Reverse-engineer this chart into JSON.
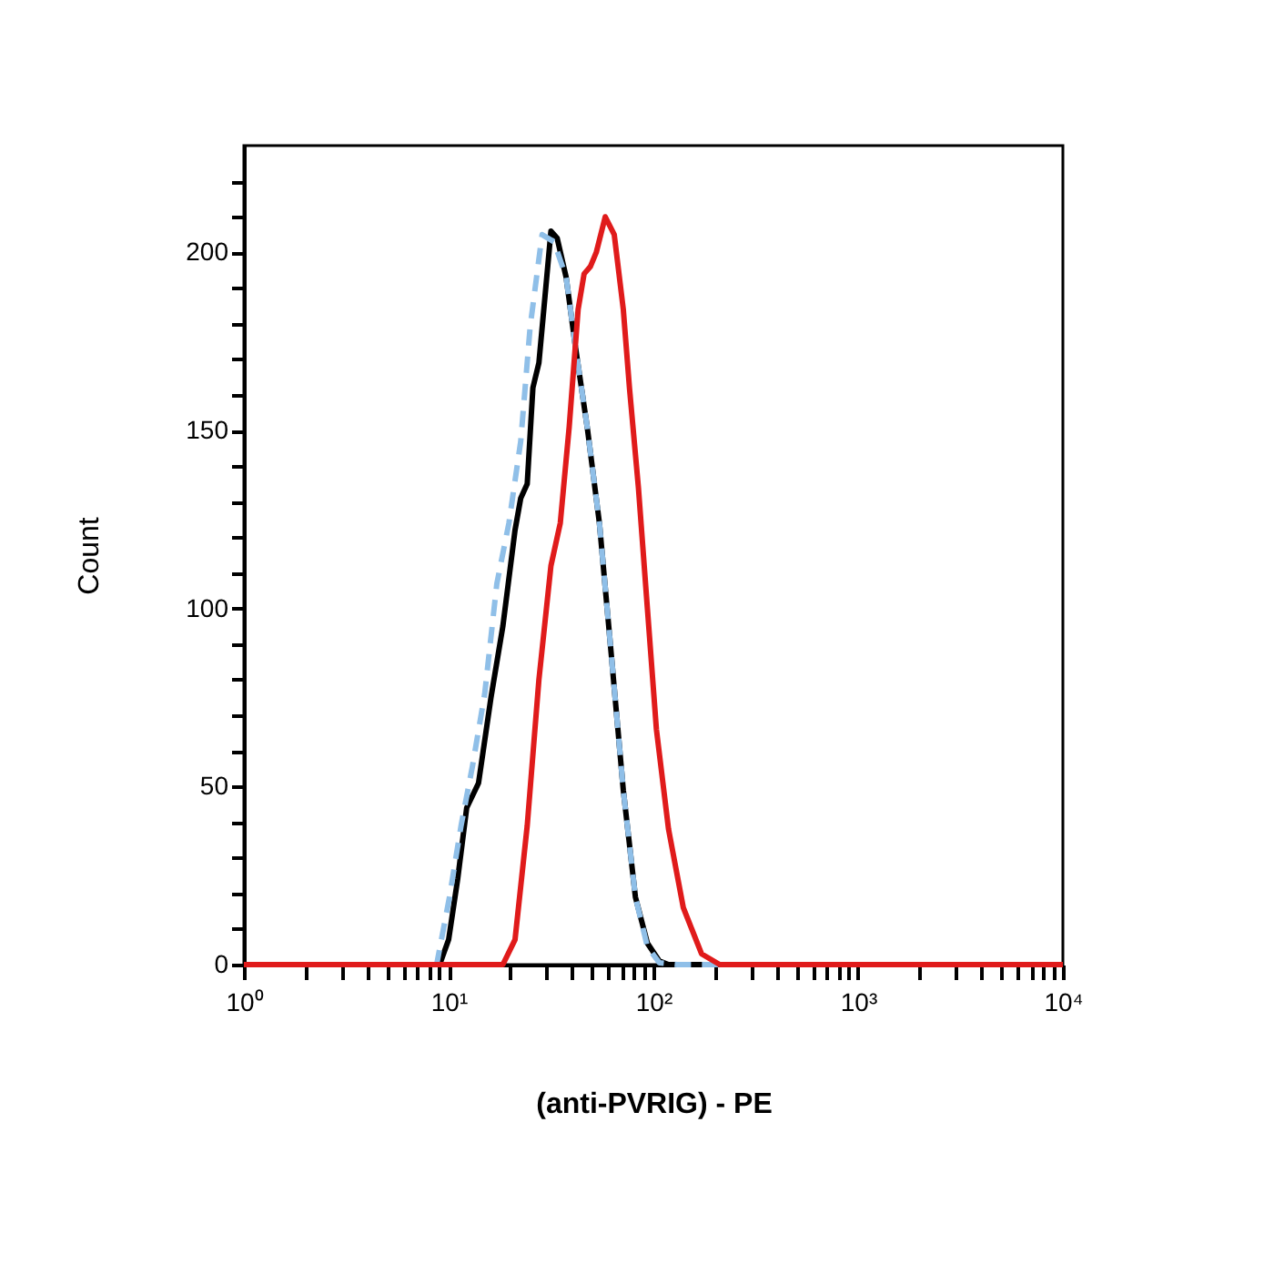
{
  "chart_data": {
    "type": "line",
    "xlabel": "(anti-PVRIG) - PE",
    "ylabel": "Count",
    "log": "x",
    "xlim": [
      1,
      10000
    ],
    "ylim": [
      0,
      230
    ],
    "xticks": [
      {
        "value": 1,
        "label": "10⁰"
      },
      {
        "value": 2,
        "label": null
      },
      {
        "value": 3,
        "label": null
      },
      {
        "value": 4,
        "label": null
      },
      {
        "value": 5,
        "label": null
      },
      {
        "value": 6,
        "label": null
      },
      {
        "value": 7,
        "label": null
      },
      {
        "value": 8,
        "label": null
      },
      {
        "value": 9,
        "label": null
      },
      {
        "value": 10,
        "label": "10¹"
      },
      {
        "value": 20,
        "label": null
      },
      {
        "value": 30,
        "label": null
      },
      {
        "value": 40,
        "label": null
      },
      {
        "value": 50,
        "label": null
      },
      {
        "value": 60,
        "label": null
      },
      {
        "value": 70,
        "label": null
      },
      {
        "value": 80,
        "label": null
      },
      {
        "value": 90,
        "label": null
      },
      {
        "value": 100,
        "label": "10²"
      },
      {
        "value": 200,
        "label": null
      },
      {
        "value": 300,
        "label": null
      },
      {
        "value": 400,
        "label": null
      },
      {
        "value": 500,
        "label": null
      },
      {
        "value": 600,
        "label": null
      },
      {
        "value": 700,
        "label": null
      },
      {
        "value": 800,
        "label": null
      },
      {
        "value": 900,
        "label": null
      },
      {
        "value": 1000,
        "label": "10³"
      },
      {
        "value": 2000,
        "label": null
      },
      {
        "value": 3000,
        "label": null
      },
      {
        "value": 4000,
        "label": null
      },
      {
        "value": 5000,
        "label": null
      },
      {
        "value": 6000,
        "label": null
      },
      {
        "value": 7000,
        "label": null
      },
      {
        "value": 8000,
        "label": null
      },
      {
        "value": 9000,
        "label": null
      },
      {
        "value": 10000,
        "label": "10⁴"
      }
    ],
    "yticks": [
      0,
      {
        "value": 10,
        "label": null
      },
      {
        "value": 20,
        "label": null
      },
      {
        "value": 30,
        "label": null
      },
      {
        "value": 40,
        "label": null
      },
      50,
      {
        "value": 60,
        "label": null
      },
      {
        "value": 70,
        "label": null
      },
      {
        "value": 80,
        "label": null
      },
      {
        "value": 90,
        "label": null
      },
      100,
      {
        "value": 110,
        "label": null
      },
      {
        "value": 120,
        "label": null
      },
      {
        "value": 130,
        "label": null
      },
      {
        "value": 140,
        "label": null
      },
      150,
      {
        "value": 160,
        "label": null
      },
      {
        "value": 170,
        "label": null
      },
      {
        "value": 180,
        "label": null
      },
      {
        "value": 190,
        "label": null
      },
      200,
      {
        "value": 210,
        "label": null
      },
      {
        "value": 220,
        "label": null
      }
    ],
    "grid": false,
    "marker": "none",
    "series": [
      {
        "color": "#000000",
        "line_style": "solid",
        "x": [
          1,
          9.04,
          10,
          11.07,
          12.25,
          14,
          16.1,
          18.4,
          21.1,
          22.5,
          24.2,
          25.8,
          27.6,
          29.6,
          31.6,
          33.9,
          37.5,
          41.5,
          47.5,
          54.5,
          62.3,
          71.3,
          81.7,
          93.5,
          107,
          118.6,
          10000
        ],
        "values": [
          0,
          0,
          7,
          24,
          44,
          51,
          75,
          95,
          122,
          131,
          135,
          162,
          169,
          188,
          206,
          204,
          193,
          174,
          151,
          124,
          87,
          49,
          19,
          6,
          1,
          0,
          0
        ]
      },
      {
        "color": "#8fbfe8",
        "line_style": "dashed",
        "x": [
          1,
          8.74,
          10.1,
          11.5,
          13.1,
          15,
          17.2,
          19.7,
          22.5,
          25,
          28.6,
          32.7,
          37.5,
          41.5,
          47.5,
          54.5,
          62.3,
          71.3,
          81.7,
          93.5,
          107,
          131,
          10000
        ],
        "values": [
          0,
          0,
          19,
          39,
          56,
          76,
          107,
          124,
          147,
          179,
          205,
          203,
          193,
          174,
          151,
          124,
          87,
          49,
          19,
          5,
          0.5,
          0,
          0
        ]
      },
      {
        "color": "#e01b1b",
        "line_style": "solid",
        "x": [
          1,
          18.4,
          21.1,
          24.2,
          27.6,
          31.6,
          35.1,
          38.8,
          42.9,
          45.9,
          49.2,
          52.6,
          58.2,
          64.4,
          71.3,
          76.4,
          84.5,
          93.5,
          103.5,
          118.6,
          140,
          172,
          211,
          10000
        ],
        "values": [
          0,
          0,
          7,
          39,
          80,
          112,
          124,
          151,
          184,
          194,
          196,
          200,
          210,
          205,
          184,
          162,
          134,
          100,
          66,
          38,
          16,
          3,
          0,
          0
        ]
      }
    ]
  }
}
